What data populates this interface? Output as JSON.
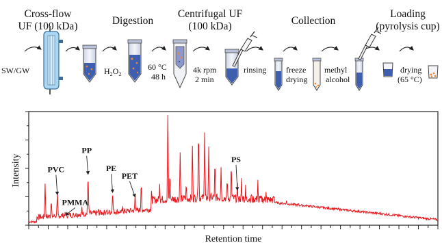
{
  "workflow": {
    "stages": [
      {
        "line1": "Cross-flow",
        "line2": "UF (100 kDa)"
      },
      {
        "line1": "Digestion",
        "line2": ""
      },
      {
        "line1": "Centrifugal UF",
        "line2": "(100 kDa)"
      },
      {
        "line1": "Collection",
        "line2": ""
      },
      {
        "line1": "Loading",
        "line2": "(pyrolysis cup)"
      }
    ],
    "source_label": "SW/GW",
    "h2o2_label": "H",
    "h2o2_sub1": "2",
    "h2o2_o": "O",
    "h2o2_sub2": "2",
    "temp_label": "60 °C",
    "time_label": "48 h",
    "rpm_label": "4k rpm",
    "duration_label": "2 min",
    "rinse_label": "rinsing",
    "freeze_line1": "freeze",
    "freeze_line2": "drying",
    "methyl_line1": "methyl",
    "methyl_line2": "alcohol",
    "dry_line1": "drying",
    "dry_line2": "(65 °C)"
  },
  "chart_data": {
    "type": "line",
    "title": "",
    "xlabel": "Retention time",
    "ylabel": "Intensity",
    "line_color": "#e8151b",
    "peaks": [
      {
        "label": "PVC",
        "x": 0.07,
        "y": 0.25
      },
      {
        "label": "PMMA",
        "x": 0.09,
        "y": 0.07
      },
      {
        "label": "PP",
        "x": 0.145,
        "y": 0.43
      },
      {
        "label": "PE",
        "x": 0.205,
        "y": 0.27
      },
      {
        "label": "PET",
        "x": 0.26,
        "y": 0.23
      },
      {
        "label": "PS",
        "x": 0.51,
        "y": 0.29
      }
    ],
    "ticks_visible": false,
    "grid": false
  }
}
